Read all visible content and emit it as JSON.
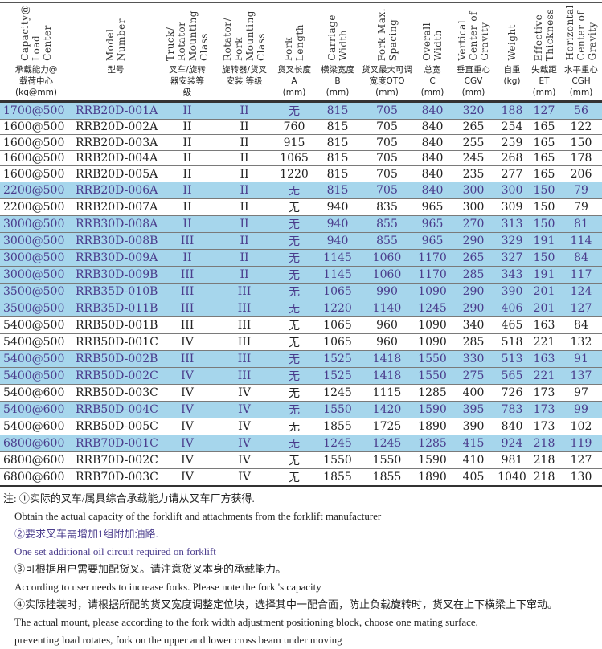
{
  "headers": [
    {
      "en": "Capacity@\nLoad\nCenter",
      "zh": "承载能力@\n载荷中心\n(kg@mm)"
    },
    {
      "en": "Model\nNumber",
      "zh": "型号"
    },
    {
      "en": "Truck/\nRotator\nMounting\nClass",
      "zh": "叉车/旋转\n器安装等\n级"
    },
    {
      "en": "Rotator/\nFork\nMounting\nClass",
      "zh": "旋转器/货叉\n安装 等级"
    },
    {
      "en": "Fork\nLength",
      "zh": "货叉长度\nA\n(mm)"
    },
    {
      "en": "Carriage\nWidth",
      "zh": "横梁宽度\nB\n(mm)"
    },
    {
      "en": "Fork Max.\nSpacing",
      "zh": "货叉最大可调\n宽度OTO\n(mm)"
    },
    {
      "en": "Overall\nWidth",
      "zh": "总宽\nC\n(mm)"
    },
    {
      "en": "Vertical\nCenter of\nGravity",
      "zh": "垂直重心\nCGV\n(mm)"
    },
    {
      "en": "Weight",
      "zh": "自重\n(kg)"
    },
    {
      "en": "Effective\nThickness",
      "zh": "失载距\nET\n(mm)"
    },
    {
      "en": "Horizontal\nCenter of\nGravity",
      "zh": "水平重心\nCGH\n(mm)"
    }
  ],
  "highlight_color": "#a6d6ec",
  "highlight_text_color": "#4a3c8c",
  "rows": [
    {
      "hl": true,
      "cells": [
        "1700@500",
        "RRB20D-001A",
        "II",
        "II",
        "无",
        "815",
        "705",
        "840",
        "320",
        "188",
        "127",
        "56"
      ]
    },
    {
      "hl": false,
      "cells": [
        "1600@500",
        "RRB20D-002A",
        "II",
        "II",
        "760",
        "815",
        "705",
        "840",
        "265",
        "254",
        "165",
        "122"
      ]
    },
    {
      "hl": false,
      "cells": [
        "1600@500",
        "RRB20D-003A",
        "II",
        "II",
        "915",
        "815",
        "705",
        "840",
        "255",
        "259",
        "165",
        "150"
      ]
    },
    {
      "hl": false,
      "cells": [
        "1600@500",
        "RRB20D-004A",
        "II",
        "II",
        "1065",
        "815",
        "705",
        "840",
        "245",
        "268",
        "165",
        "178"
      ]
    },
    {
      "hl": false,
      "cells": [
        "1600@500",
        "RRB20D-005A",
        "II",
        "II",
        "1220",
        "815",
        "705",
        "840",
        "235",
        "277",
        "165",
        "206"
      ]
    },
    {
      "hl": true,
      "cells": [
        "2200@500",
        "RRB20D-006A",
        "II",
        "II",
        "无",
        "815",
        "705",
        "840",
        "300",
        "300",
        "150",
        "79"
      ]
    },
    {
      "hl": false,
      "cells": [
        "2200@500",
        "RRB20D-007A",
        "II",
        "II",
        "无",
        "940",
        "835",
        "965",
        "300",
        "309",
        "150",
        "79"
      ]
    },
    {
      "hl": true,
      "cells": [
        "3000@500",
        "RRB30D-008A",
        "II",
        "II",
        "无",
        "940",
        "855",
        "965",
        "270",
        "313",
        "150",
        "81"
      ]
    },
    {
      "hl": true,
      "cells": [
        "3000@500",
        "RRB30D-008B",
        "III",
        "II",
        "无",
        "940",
        "855",
        "965",
        "290",
        "329",
        "191",
        "114"
      ]
    },
    {
      "hl": true,
      "cells": [
        "3000@500",
        "RRB30D-009A",
        "II",
        "II",
        "无",
        "1145",
        "1060",
        "1170",
        "265",
        "327",
        "150",
        "84"
      ]
    },
    {
      "hl": true,
      "cells": [
        "3000@500",
        "RRB30D-009B",
        "III",
        "II",
        "无",
        "1145",
        "1060",
        "1170",
        "285",
        "343",
        "191",
        "117"
      ]
    },
    {
      "hl": true,
      "cells": [
        "3500@500",
        "RRB35D-010B",
        "III",
        "III",
        "无",
        "1065",
        "990",
        "1090",
        "290",
        "390",
        "201",
        "124"
      ]
    },
    {
      "hl": true,
      "cells": [
        "3500@500",
        "RRB35D-011B",
        "III",
        "III",
        "无",
        "1220",
        "1140",
        "1245",
        "290",
        "406",
        "201",
        "127"
      ]
    },
    {
      "hl": false,
      "cells": [
        "5400@500",
        "RRB50D-001B",
        "III",
        "III",
        "无",
        "1065",
        "960",
        "1090",
        "340",
        "465",
        "163",
        "84"
      ]
    },
    {
      "hl": false,
      "cells": [
        "5400@500",
        "RRB50D-001C",
        "IV",
        "III",
        "无",
        "1065",
        "960",
        "1090",
        "285",
        "518",
        "221",
        "132"
      ]
    },
    {
      "hl": true,
      "cells": [
        "5400@500",
        "RRB50D-002B",
        "III",
        "III",
        "无",
        "1525",
        "1418",
        "1550",
        "330",
        "513",
        "163",
        "91"
      ]
    },
    {
      "hl": true,
      "cells": [
        "5400@500",
        "RRB50D-002C",
        "IV",
        "III",
        "无",
        "1525",
        "1418",
        "1550",
        "275",
        "565",
        "221",
        "137"
      ]
    },
    {
      "hl": false,
      "cells": [
        "5400@600",
        "RRB50D-003C",
        "IV",
        "IV",
        "无",
        "1245",
        "1115",
        "1285",
        "400",
        "726",
        "173",
        "97"
      ]
    },
    {
      "hl": true,
      "cells": [
        "5400@600",
        "RRB50D-004C",
        "IV",
        "IV",
        "无",
        "1550",
        "1420",
        "1590",
        "395",
        "783",
        "173",
        "99"
      ]
    },
    {
      "hl": false,
      "cells": [
        "5400@600",
        "RRB50D-005C",
        "IV",
        "IV",
        "无",
        "1855",
        "1725",
        "1890",
        "390",
        "840",
        "173",
        "102"
      ]
    },
    {
      "hl": true,
      "cells": [
        "6800@600",
        "RRB70D-001C",
        "IV",
        "IV",
        "无",
        "1245",
        "1245",
        "1285",
        "415",
        "924",
        "218",
        "119"
      ]
    },
    {
      "hl": false,
      "cells": [
        "6800@600",
        "RRB70D-002C",
        "IV",
        "IV",
        "无",
        "1550",
        "1550",
        "1590",
        "410",
        "981",
        "218",
        "127"
      ]
    },
    {
      "hl": false,
      "cells": [
        "6800@600",
        "RRB70D-003C",
        "IV",
        "IV",
        "无",
        "1855",
        "1855",
        "1890",
        "405",
        "1040",
        "218",
        "130"
      ]
    }
  ],
  "notes": {
    "n1_zh": "注: ①实际的叉车/属具综合承载能力请从叉车厂方获得.",
    "n1_en": "Obtain the actual capacity of the forklift and attachments from the forklift manufacturer",
    "n2_zh": "②要求叉车需增加1组附加油路.",
    "n2_en": "One set additional oil circuit required on forklift",
    "n3_zh": "③可根据用户需要加配货叉。请注意货叉本身的承载能力。",
    "n3_en": "According to user needs to increase forks. Please note the fork 's  capacity",
    "n4_zh": "④实际挂装时，请根据所配的货叉宽度调整定位块，选择其中一配合面，防止负载旋转时，货叉在上下横梁上下窜动。",
    "n4_en1": "The actual mount, please according to the fork width adjustment positioning block, choose one mating surface,",
    "n4_en2": "preventing load rotates, fork on the upper and lower cross beam under moving"
  }
}
